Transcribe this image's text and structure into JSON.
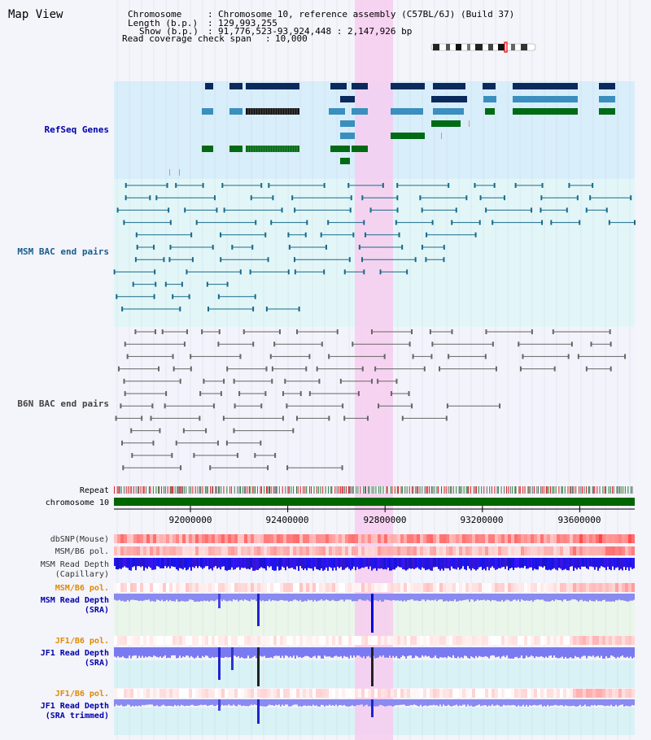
{
  "panel_title": "Map View",
  "info": {
    "chromosome_label": "Chromosome",
    "chromosome_value": "Chromosome 10, reference assembly (C57BL/6J) (Build 37)",
    "length_label": "Length (b.p.)",
    "length_value": "129,993,255",
    "show_label": "Show (b.p.)",
    "show_value": "91,776,523-93,924,448 : 2,147,926 bp",
    "coverage_label": "Read coverage check span",
    "coverage_value": "10,000"
  },
  "tracks": {
    "refseq": "RefSeq Genes",
    "msm_bac": "MSM BAC end pairs",
    "b6n_bac": "B6N BAC end pairs",
    "repeat": "Repeat",
    "chromosome": "chromosome 10",
    "dbsnp": "dbSNP(Mouse)",
    "msm_b6_pol_1": "MSM/B6 pol.",
    "msm_depth_cap_1": "MSM Read Depth",
    "msm_depth_cap_2": "(Capillary)",
    "msm_b6_pol_2": "MSM/B6 pol.",
    "msm_depth_sra_1": "MSM Read Depth",
    "msm_depth_sra_2": "(SRA)",
    "jf1_b6_pol_1": "JF1/B6 pol.",
    "jf1_depth_sra_1": "JF1 Read Depth",
    "jf1_depth_sra_2": "(SRA)",
    "jf1_b6_pol_2": "JF1/B6 pol.",
    "jf1_depth_trim_1": "JF1 Read Depth",
    "jf1_depth_trim_2": "(SRA trimmed)"
  },
  "ruler": {
    "ticks": [
      "92000000",
      "92400000",
      "92800000",
      "93200000",
      "93600000"
    ]
  },
  "colors": {
    "refseq_label": "#0000aa",
    "msm_label": "#1a5c8a",
    "b6n_label": "#444444",
    "pol_label": "#e08a00",
    "depth_label": "#0000aa",
    "highlight": "#f7cdf0",
    "chromosome_bar": "#006600",
    "gene_dark": "#0a2a5c",
    "gene_mid": "#3a8fbf",
    "gene_green": "#006a14"
  }
}
